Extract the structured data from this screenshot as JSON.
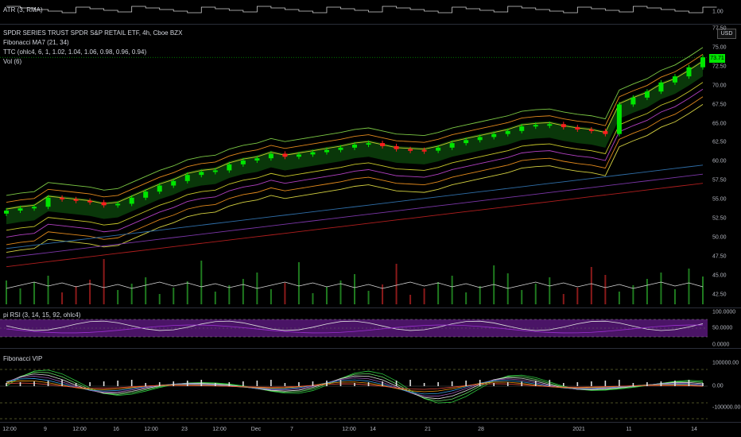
{
  "atr": {
    "label": "ATR (3, RMA)",
    "value": "1.00"
  },
  "main": {
    "title": "SPDR SERIES TRUST SPDR S&P RETAIL ETF, 4h, Cboe BZX",
    "ind1": "Fibonacci MA7 (21, 34)",
    "ind2": "TTC (ohlc4, 6, 1, 1.02, 1.04, 1.06, 0.98, 0.96, 0.94)",
    "ind3": "Vol (6)",
    "currency": "USD",
    "last_price": "73.71",
    "ticks": [
      "77.50",
      "75.00",
      "72.50",
      "70.00",
      "67.50",
      "65.00",
      "62.50",
      "60.00",
      "57.50",
      "55.00",
      "52.50",
      "50.00",
      "47.50",
      "45.00",
      "42.50"
    ]
  },
  "rsi": {
    "label": "pi RSI (3, 14, 15, 92, ohlc4)",
    "ticks": [
      "100.0000",
      "50.0000",
      "0.0000"
    ]
  },
  "vip": {
    "label": "Fibonacci VIP",
    "ticks": [
      "100000.00",
      "0.00",
      "-100000.00"
    ]
  },
  "xaxis": [
    "12:00",
    "9",
    "12:00",
    "16",
    "12:00",
    "23",
    "12:00",
    "Dec",
    "7",
    "12:00",
    "14",
    "21",
    "28",
    "2021",
    "11",
    "14"
  ],
  "chart_data": {
    "type": "candlestick",
    "title": "SPDR SERIES TRUST SPDR S&P RETAIL ETF, 4h, Cboe BZX",
    "ylim": [
      42.5,
      77.5
    ],
    "close_approx": [
      53.5,
      53.8,
      54.0,
      55.2,
      55.0,
      54.8,
      54.6,
      54.2,
      54.4,
      55.2,
      56.0,
      56.8,
      57.4,
      58.2,
      58.6,
      58.8,
      59.6,
      60.1,
      60.4,
      61.0,
      60.6,
      60.9,
      61.2,
      61.5,
      61.8,
      62.2,
      62.4,
      62.0,
      61.6,
      61.5,
      61.4,
      61.8,
      62.4,
      62.8,
      63.2,
      63.6,
      64.0,
      64.6,
      64.8,
      64.9,
      64.5,
      64.2,
      64.0,
      63.6,
      67.5,
      68.4,
      69.2,
      70.4,
      71.2,
      72.4,
      73.71
    ],
    "last": 73.71,
    "rsi_ylim": [
      0,
      100
    ],
    "vip_ylim": [
      -100000,
      100000
    ]
  },
  "colors": {
    "up": "#00e600",
    "down": "#ff1f1f",
    "rsi_band": "#4a1466",
    "band_fill": "#0b3d0b"
  }
}
